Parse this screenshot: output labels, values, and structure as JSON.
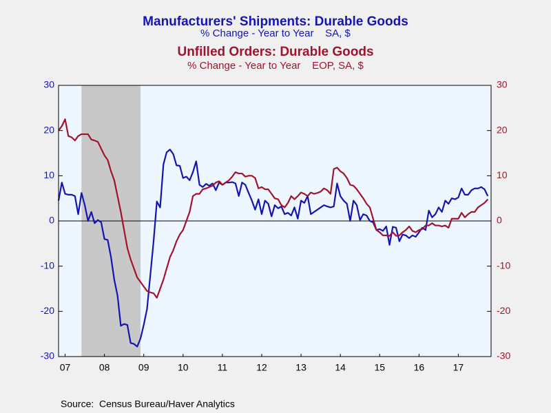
{
  "chart_data": {
    "type": "line",
    "titles": [
      {
        "text": "Manufacturers' Shipments: Durable Goods",
        "color": "#1414b4"
      },
      {
        "text": "% Change - Year to Year    SA, $",
        "color": "#1414b4"
      },
      {
        "text": "Unfilled Orders: Durable Goods",
        "color": "#a3122c"
      },
      {
        "text": "% Change - Year to Year    EOP, SA, $",
        "color": "#a3122c"
      }
    ],
    "source": "Source:  Census Bureau/Haver Analytics",
    "x": [
      2007.333,
      2007.417,
      2007.5,
      2007.583,
      2007.667,
      2007.75,
      2007.833,
      2007.917,
      2008.0,
      2008.083,
      2008.167,
      2008.25,
      2008.333,
      2008.417,
      2008.5,
      2008.583,
      2008.667,
      2008.75,
      2008.833,
      2008.917,
      2009.0,
      2009.083,
      2009.167,
      2009.25,
      2009.333,
      2009.417,
      2009.5,
      2009.583,
      2009.667,
      2009.75,
      2009.833,
      2009.917,
      2010.0,
      2010.083,
      2010.167,
      2010.25,
      2010.333,
      2010.417,
      2010.5,
      2010.583,
      2010.667,
      2010.75,
      2010.833,
      2010.917,
      2011.0,
      2011.083,
      2011.167,
      2011.25,
      2011.333,
      2011.417,
      2011.5,
      2011.583,
      2011.667,
      2011.75,
      2011.833,
      2011.917,
      2012.0,
      2012.083,
      2012.167,
      2012.25,
      2012.333,
      2012.417,
      2012.5,
      2012.583,
      2012.667,
      2012.75,
      2012.833,
      2012.917,
      2013.0,
      2013.083,
      2013.167,
      2013.25,
      2013.333,
      2013.417,
      2013.5,
      2013.583,
      2013.667,
      2013.75,
      2013.833,
      2013.917,
      2014.0,
      2014.083,
      2014.167,
      2014.25,
      2014.333,
      2014.417,
      2014.5,
      2014.583,
      2014.667,
      2014.75,
      2014.833,
      2014.917,
      2015.0,
      2015.083,
      2015.167,
      2015.25,
      2015.333,
      2015.417,
      2015.5,
      2015.583,
      2015.667,
      2015.75,
      2015.833,
      2015.917,
      2016.0,
      2016.083,
      2016.167,
      2016.25,
      2016.333,
      2016.417,
      2016.5,
      2016.583,
      2016.667,
      2016.75,
      2016.833,
      2016.917,
      2017.0,
      2017.083,
      2017.167,
      2017.25,
      2017.333,
      2017.417,
      2017.5,
      2017.583,
      2017.667,
      2017.75,
      2017.833,
      2017.917,
      2018.0,
      2018.083,
      2018.167,
      2018.25
    ],
    "series": [
      {
        "name": "Manufacturers' Shipments: Durable Goods",
        "color": "#1414b4",
        "axis": "y",
        "values": [
          4.5,
          8.5,
          6,
          5.8,
          5.8,
          5.5,
          1.5,
          6.2,
          3.5,
          0,
          2,
          -0.5,
          0.2,
          -0.3,
          -4,
          -4.2,
          -8,
          -13,
          -16.5,
          -23.2,
          -22.8,
          -23,
          -27,
          -27.2,
          -27.8,
          -26,
          -23,
          -19.5,
          -12,
          -4.5,
          4.3,
          3,
          12.5,
          15.2,
          15.8,
          14.8,
          12.3,
          12.2,
          9.5,
          9.8,
          9,
          10.8,
          13.2,
          8,
          7.5,
          8.2,
          7.8,
          8.3,
          6.8,
          8.5,
          8,
          8.5,
          8.5,
          8.6,
          8.3,
          5.5,
          8.5,
          8,
          6.2,
          4.5,
          2.5,
          4.8,
          1.5,
          4.5,
          3.8,
          1,
          3.5,
          2.8,
          3.2,
          1.5,
          1.8,
          1.2,
          3,
          0.5,
          4.5,
          4,
          5.5,
          1.5,
          2,
          2.5,
          3,
          3.5,
          3.2,
          3,
          3.2,
          8.3,
          5.5,
          4.5,
          3.8,
          0,
          4.5,
          3.5,
          0.2,
          1.5,
          1.2,
          0,
          -0.3,
          -2,
          -1.8,
          -2.2,
          -1.2,
          -5.3,
          -1.3,
          -1.5,
          -4.5,
          -3,
          -3.2,
          -3.8,
          -3.2,
          -3.5,
          -2.5,
          -1.5,
          -2,
          2.3,
          0.8,
          1.5,
          3,
          2,
          4.5,
          3.8,
          5,
          4.8,
          5.2,
          7.2,
          5.8,
          5.8,
          6.8,
          7.2,
          7.2,
          7.5,
          7,
          5.5
        ]
      },
      {
        "name": "Unfilled Orders: Durable Goods",
        "color": "#a3122c",
        "axis": "y2",
        "values": [
          20,
          21,
          22.5,
          18.8,
          18.5,
          17.8,
          18.8,
          19.2,
          19.2,
          19.2,
          18,
          17.8,
          17.5,
          16,
          14.5,
          13.5,
          11,
          9,
          5.5,
          2,
          -2,
          -6,
          -8.5,
          -10.5,
          -12.5,
          -13.5,
          -14.5,
          -15.5,
          -15.8,
          -16,
          -17,
          -15,
          -13,
          -10.5,
          -8,
          -6.5,
          -4.5,
          -3,
          -2,
          0,
          2,
          5.5,
          6,
          6,
          7,
          7.2,
          7.5,
          7.8,
          8.5,
          8.8,
          8,
          8.5,
          9,
          9.8,
          10.8,
          10.5,
          10.5,
          9.8,
          10,
          10,
          9.5,
          7.2,
          7.5,
          7,
          7,
          6,
          5,
          4.8,
          3.5,
          3,
          4,
          5.5,
          4.8,
          5.5,
          6.3,
          6,
          5.5,
          6.3,
          6,
          6.2,
          6.5,
          7.2,
          6.8,
          6,
          11.5,
          11.8,
          11,
          10.5,
          9.5,
          8,
          7.8,
          7,
          6,
          5,
          3.8,
          3,
          0.5,
          -2,
          -2.5,
          -3.2,
          -3.2,
          -3.3,
          -2.5,
          -3.3,
          -3.2,
          -2.5,
          -2,
          -1.2,
          -2.2,
          -2.5,
          -2,
          -1.8,
          -1,
          -1,
          -0.5,
          -1,
          -1,
          -1.2,
          -1,
          -1.5,
          0.5,
          0.5,
          0.5,
          1.8,
          0.8,
          1.5,
          2,
          2,
          3,
          3.5,
          4,
          4.8
        ]
      }
    ],
    "xlim": [
      2007.333,
      2018.333
    ],
    "xticks": [
      {
        "value": 2007.5,
        "label": "07"
      },
      {
        "value": 2008.5,
        "label": "08"
      },
      {
        "value": 2009.5,
        "label": "09"
      },
      {
        "value": 2010.5,
        "label": "10"
      },
      {
        "value": 2011.5,
        "label": "11"
      },
      {
        "value": 2012.5,
        "label": "12"
      },
      {
        "value": 2013.5,
        "label": "13"
      },
      {
        "value": 2014.5,
        "label": "14"
      },
      {
        "value": 2015.5,
        "label": "15"
      },
      {
        "value": 2016.5,
        "label": "16"
      },
      {
        "value": 2017.5,
        "label": "17"
      }
    ],
    "ylim": [
      -30,
      30
    ],
    "yticks": [
      -30,
      -20,
      -10,
      0,
      10,
      20,
      30
    ],
    "y2lim": [
      -30,
      30
    ],
    "y2ticks": [
      -30,
      -20,
      -10,
      0,
      10,
      20,
      30
    ],
    "shaded_ranges": [
      [
        2007.917,
        2009.417
      ]
    ],
    "shade_color": "#c8c8c8",
    "plot_background": "#eef6ff"
  }
}
